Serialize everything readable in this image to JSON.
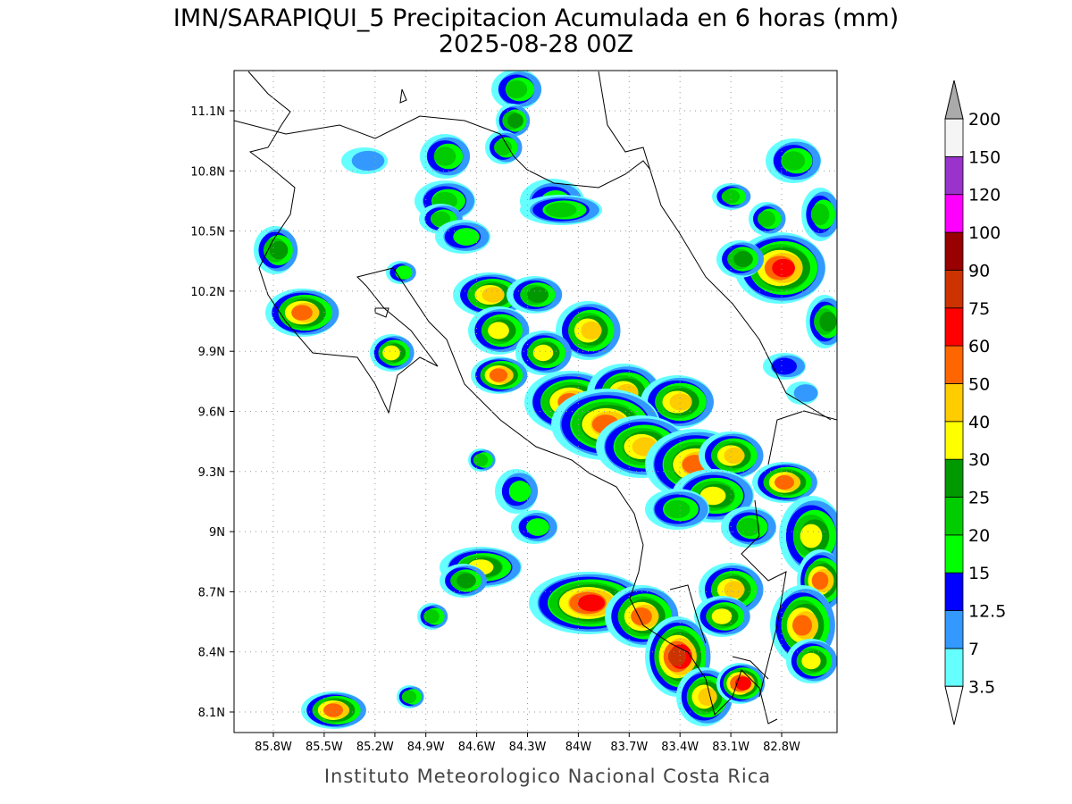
{
  "title": "IMN/SARAPIQUI_5 Precipitacion Acumulada en 6 horas (mm)",
  "subtitle": "2025-08-28 00Z",
  "lat_labels": [
    "11.1N",
    "10.8N",
    "10.5N",
    "10.2N",
    "9.9N",
    "9.6N",
    "9.3N",
    "9N",
    "8.7N",
    "8.4N",
    "8.1N"
  ],
  "lon_labels": [
    "85.8W",
    "85.5W",
    "85.2W",
    "84.9W",
    "84.6W",
    "84.3W",
    "84W",
    "83.7W",
    "83.4W",
    "83.1W",
    "82.8W"
  ],
  "colorbar": {
    "labels": [
      "3.5",
      "7",
      "12.5",
      "15",
      "20",
      "25",
      "30",
      "40",
      "50",
      "60",
      "75",
      "90",
      "100",
      "120",
      "150",
      "200"
    ],
    "colors": [
      "#66ffff",
      "#3399ff",
      "#0000ff",
      "#00ff00",
      "#00cc00",
      "#009900",
      "#ffff00",
      "#ffcc00",
      "#ff6600",
      "#ff0000",
      "#cc3300",
      "#990000",
      "#ff00ff",
      "#9933cc",
      "#f5f5f5"
    ],
    "over_color": "#aaaaaa",
    "under_color": "#ffffff"
  },
  "footer": "Instituto Meteorologico Nacional Costa Rica"
}
